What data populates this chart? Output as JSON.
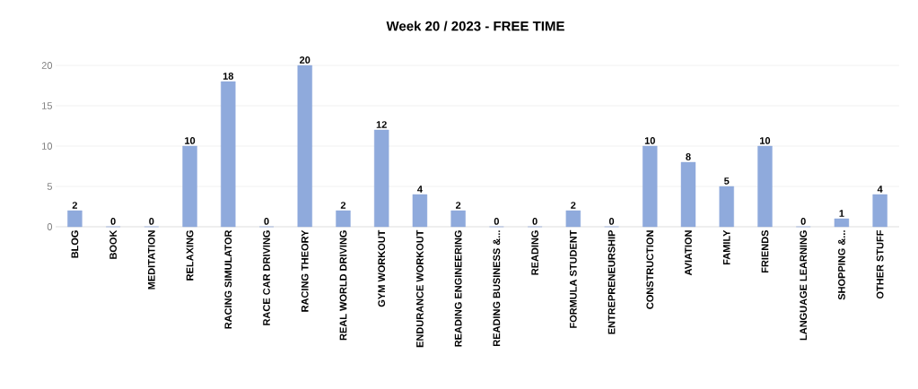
{
  "chart_data": {
    "type": "bar",
    "title": "Week 20 / 2023 - FREE TIME",
    "categories": [
      "BLOG",
      "BOOK",
      "MEDITATION",
      "RELAXING",
      "RACING SIMULATOR",
      "RACE CAR DRIVING",
      "RACING THEORY",
      "REAL WORLD DRIVING",
      "GYM WORKOUT",
      "ENDURANCE WORKOUT",
      "READING ENGINEERING",
      "READING BUSINESS &...",
      "READING",
      "FORMULA STUDENT",
      "ENTREPRENEURSHIP",
      "CONSTRUCTION",
      "AVIATION",
      "FAMILY",
      "FRIENDS",
      "LANGUAGE LEARNING",
      "SHOPPING &...",
      "OTHER STUFF"
    ],
    "values": [
      2,
      0,
      0,
      10,
      18,
      0,
      20,
      2,
      12,
      4,
      2,
      0,
      0,
      2,
      0,
      10,
      8,
      5,
      10,
      0,
      1,
      4
    ],
    "color": "#8faadc",
    "ylim": [
      0,
      20
    ],
    "yticks": [
      0,
      5,
      10,
      15,
      20
    ],
    "grid": "y",
    "data_labels": true
  }
}
